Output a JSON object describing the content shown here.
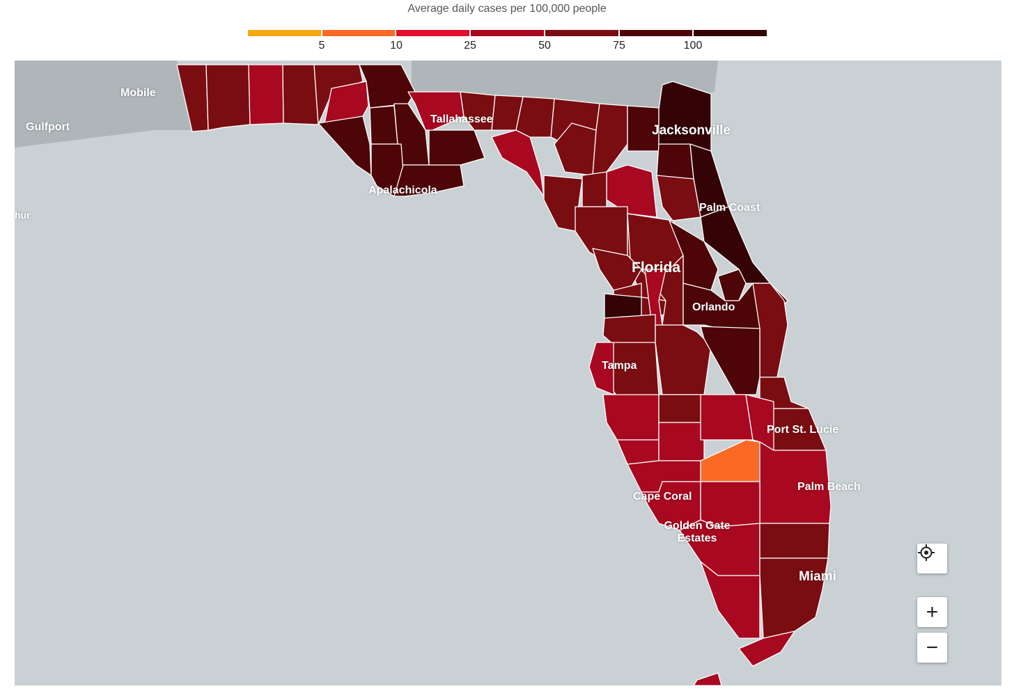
{
  "legend": {
    "title": "Average daily cases per 100,000 people",
    "colors": [
      "#f7a711",
      "#fb6a24",
      "#e0102d",
      "#a80820",
      "#7a0d12",
      "#4e0508",
      "#330306"
    ],
    "ticks": [
      "5",
      "10",
      "25",
      "50",
      "75",
      "100"
    ]
  },
  "map": {
    "state_label": "Florida",
    "cities": [
      {
        "id": "mobile",
        "name": "Mobile"
      },
      {
        "id": "gulfport",
        "name": "Gulfport"
      },
      {
        "id": "arthur",
        "name": "hur"
      },
      {
        "id": "tallahassee",
        "name": "Tallahassee"
      },
      {
        "id": "apalachicola",
        "name": "Apalachicola"
      },
      {
        "id": "jacksonville",
        "name": "Jacksonville"
      },
      {
        "id": "palm-coast",
        "name": "Palm Coast"
      },
      {
        "id": "orlando",
        "name": "Orlando"
      },
      {
        "id": "tampa",
        "name": "Tampa"
      },
      {
        "id": "port-st-lucie",
        "name": "Port St. Lucie"
      },
      {
        "id": "palm-beach",
        "name": "Palm Beach"
      },
      {
        "id": "cape-coral",
        "name": "Cape Coral"
      },
      {
        "id": "golden-gate",
        "name": "Golden Gate Estates"
      },
      {
        "id": "miami",
        "name": "Miami"
      }
    ]
  },
  "controls": {
    "locate_icon": "crosshair-icon",
    "zoom_in": "+",
    "zoom_out": "−"
  }
}
